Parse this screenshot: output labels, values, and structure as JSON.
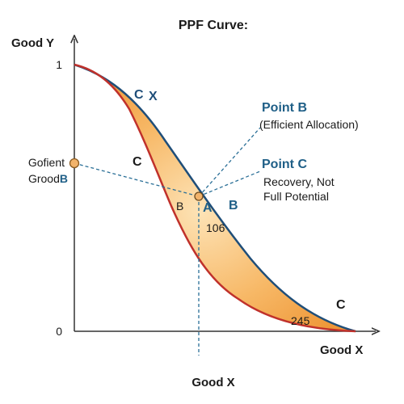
{
  "title": "PPF Curve:",
  "y_axis_label": "Good Y",
  "x_axis_label": "Good X",
  "x_axis_bottom_label": "Good X",
  "y_tick_top": "1",
  "y_tick_bottom": "0",
  "left_marker_line1": "Gofient",
  "left_marker_line2_prefix": "Grood",
  "left_marker_line2_suffix": "B",
  "curve_labels": {
    "outer_c": "C",
    "outer_x": "X",
    "inner_c": "C",
    "bottom_c": "C"
  },
  "point_labels": {
    "left_b": "B",
    "a": "A",
    "right_b": "B"
  },
  "region_values": {
    "middle": "106",
    "bottom": "245"
  },
  "annotations": {
    "point_b_title": "Point B",
    "point_b_desc": "(Efficient Allocation)",
    "point_c_title": "Point C",
    "point_c_line1": "Recovery, Not",
    "point_c_line2": "Full Potential"
  },
  "colors": {
    "outer_curve": "#1f4e79",
    "inner_curve": "#c0312b",
    "fill_light": "#fbd9a3",
    "fill_dark": "#f39c3d",
    "dash": "#2a6f97",
    "marker_fill": "#f2b36b",
    "marker_stroke": "#8a5a20"
  }
}
